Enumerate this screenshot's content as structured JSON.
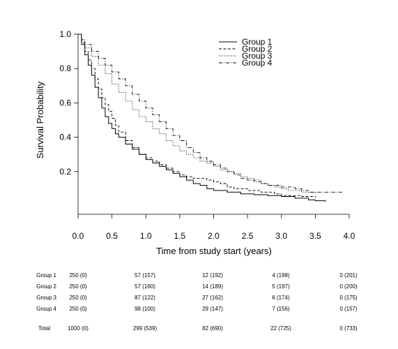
{
  "chart_data": {
    "type": "line",
    "step": true,
    "title": "",
    "xlabel": "Time from study start (years)",
    "ylabel": "Survival Probability",
    "xlim": [
      0,
      4.0
    ],
    "ylim": [
      0,
      1.0
    ],
    "x_ticks": [
      "0.0",
      "0.5",
      "1.0",
      "1.5",
      "2.0",
      "2.5",
      "3.0",
      "3.5",
      "4.0"
    ],
    "y_ticks": [
      "0.2",
      "0.4",
      "0.6",
      "0.8",
      "1.0"
    ],
    "grid": false,
    "legend_position": "top-right",
    "series": [
      {
        "name": "Group 1",
        "style": "solid",
        "points": [
          [
            0,
            1.0
          ],
          [
            0.05,
            0.94
          ],
          [
            0.1,
            0.88
          ],
          [
            0.15,
            0.82
          ],
          [
            0.2,
            0.76
          ],
          [
            0.25,
            0.69
          ],
          [
            0.3,
            0.63
          ],
          [
            0.35,
            0.57
          ],
          [
            0.4,
            0.52
          ],
          [
            0.45,
            0.48
          ],
          [
            0.5,
            0.45
          ],
          [
            0.55,
            0.42
          ],
          [
            0.6,
            0.4
          ],
          [
            0.7,
            0.36
          ],
          [
            0.8,
            0.33
          ],
          [
            0.9,
            0.3
          ],
          [
            1.0,
            0.27
          ],
          [
            1.1,
            0.25
          ],
          [
            1.2,
            0.23
          ],
          [
            1.3,
            0.21
          ],
          [
            1.4,
            0.19
          ],
          [
            1.5,
            0.17
          ],
          [
            1.6,
            0.15
          ],
          [
            1.7,
            0.13
          ],
          [
            1.8,
            0.12
          ],
          [
            1.9,
            0.1
          ],
          [
            2.0,
            0.09
          ],
          [
            2.2,
            0.08
          ],
          [
            2.4,
            0.07
          ],
          [
            2.6,
            0.065
          ],
          [
            2.8,
            0.06
          ],
          [
            3.0,
            0.055
          ],
          [
            3.2,
            0.045
          ],
          [
            3.4,
            0.035
          ],
          [
            3.5,
            0.03
          ],
          [
            3.65,
            0.025
          ]
        ]
      },
      {
        "name": "Group 2",
        "style": "dashed",
        "points": [
          [
            0,
            1.0
          ],
          [
            0.05,
            0.95
          ],
          [
            0.1,
            0.9
          ],
          [
            0.15,
            0.85
          ],
          [
            0.2,
            0.8
          ],
          [
            0.25,
            0.74
          ],
          [
            0.3,
            0.68
          ],
          [
            0.35,
            0.63
          ],
          [
            0.4,
            0.59
          ],
          [
            0.45,
            0.55
          ],
          [
            0.5,
            0.51
          ],
          [
            0.55,
            0.47
          ],
          [
            0.6,
            0.43
          ],
          [
            0.7,
            0.38
          ],
          [
            0.8,
            0.34
          ],
          [
            0.9,
            0.3
          ],
          [
            1.0,
            0.28
          ],
          [
            1.1,
            0.26
          ],
          [
            1.2,
            0.24
          ],
          [
            1.3,
            0.22
          ],
          [
            1.4,
            0.2
          ],
          [
            1.5,
            0.18
          ],
          [
            1.6,
            0.17
          ],
          [
            1.7,
            0.16
          ],
          [
            1.8,
            0.16
          ],
          [
            1.9,
            0.15
          ],
          [
            2.0,
            0.14
          ],
          [
            2.1,
            0.13
          ],
          [
            2.2,
            0.11
          ],
          [
            2.3,
            0.1
          ],
          [
            2.5,
            0.09
          ],
          [
            2.7,
            0.08
          ],
          [
            2.9,
            0.07
          ],
          [
            3.0,
            0.06
          ],
          [
            3.3,
            0.055
          ],
          [
            3.5,
            0.05
          ]
        ]
      },
      {
        "name": "Group 3",
        "style": "dotted",
        "points": [
          [
            0,
            1.0
          ],
          [
            0.05,
            0.96
          ],
          [
            0.1,
            0.92
          ],
          [
            0.2,
            0.87
          ],
          [
            0.3,
            0.82
          ],
          [
            0.4,
            0.77
          ],
          [
            0.5,
            0.71
          ],
          [
            0.6,
            0.66
          ],
          [
            0.7,
            0.61
          ],
          [
            0.8,
            0.56
          ],
          [
            0.9,
            0.52
          ],
          [
            1.0,
            0.49
          ],
          [
            1.1,
            0.45
          ],
          [
            1.2,
            0.42
          ],
          [
            1.3,
            0.38
          ],
          [
            1.4,
            0.35
          ],
          [
            1.5,
            0.32
          ],
          [
            1.6,
            0.3
          ],
          [
            1.7,
            0.28
          ],
          [
            1.8,
            0.26
          ],
          [
            1.9,
            0.25
          ],
          [
            2.0,
            0.23
          ],
          [
            2.1,
            0.21
          ],
          [
            2.2,
            0.2
          ],
          [
            2.3,
            0.19
          ],
          [
            2.4,
            0.17
          ],
          [
            2.5,
            0.16
          ],
          [
            2.6,
            0.15
          ],
          [
            2.7,
            0.13
          ],
          [
            2.8,
            0.12
          ],
          [
            2.9,
            0.11
          ],
          [
            3.0,
            0.1
          ],
          [
            3.1,
            0.09
          ],
          [
            3.3,
            0.08
          ],
          [
            3.5,
            0.075
          ]
        ]
      },
      {
        "name": "Group 4",
        "style": "dashdot",
        "points": [
          [
            0,
            1.0
          ],
          [
            0.05,
            0.97
          ],
          [
            0.1,
            0.94
          ],
          [
            0.2,
            0.9
          ],
          [
            0.3,
            0.86
          ],
          [
            0.4,
            0.82
          ],
          [
            0.5,
            0.78
          ],
          [
            0.6,
            0.74
          ],
          [
            0.7,
            0.7
          ],
          [
            0.8,
            0.65
          ],
          [
            0.9,
            0.61
          ],
          [
            1.0,
            0.57
          ],
          [
            1.1,
            0.53
          ],
          [
            1.2,
            0.49
          ],
          [
            1.3,
            0.45
          ],
          [
            1.4,
            0.41
          ],
          [
            1.5,
            0.38
          ],
          [
            1.6,
            0.34
          ],
          [
            1.7,
            0.31
          ],
          [
            1.8,
            0.28
          ],
          [
            1.9,
            0.26
          ],
          [
            2.0,
            0.24
          ],
          [
            2.1,
            0.22
          ],
          [
            2.2,
            0.2
          ],
          [
            2.3,
            0.18
          ],
          [
            2.4,
            0.16
          ],
          [
            2.5,
            0.15
          ],
          [
            2.6,
            0.14
          ],
          [
            2.7,
            0.13
          ],
          [
            2.8,
            0.12
          ],
          [
            3.0,
            0.11
          ],
          [
            3.2,
            0.1
          ],
          [
            3.3,
            0.09
          ],
          [
            3.4,
            0.08
          ],
          [
            3.6,
            0.08
          ],
          [
            3.9,
            0.08
          ]
        ]
      }
    ]
  },
  "risk_table": {
    "rows": [
      {
        "label": "Group 1",
        "values": [
          "250 (0)",
          "57 (157)",
          "12 (192)",
          "4 (198)",
          "0 (201)"
        ]
      },
      {
        "label": "Group 2",
        "values": [
          "250 (0)",
          "57 (160)",
          "14 (189)",
          "5 (197)",
          "0 (200)"
        ]
      },
      {
        "label": "Group 3",
        "values": [
          "250 (0)",
          "87 (122)",
          "27 (162)",
          "6 (174)",
          "0 (175)"
        ]
      },
      {
        "label": "Group 4",
        "values": [
          "250 (0)",
          "98 (100)",
          "29 (147)",
          "7 (156)",
          "0 (157)"
        ]
      }
    ],
    "total": {
      "label": "Total",
      "values": [
        "1000 (0)",
        "299 (539)",
        "82 (690)",
        "22 (725)",
        "0 (733)"
      ]
    }
  }
}
